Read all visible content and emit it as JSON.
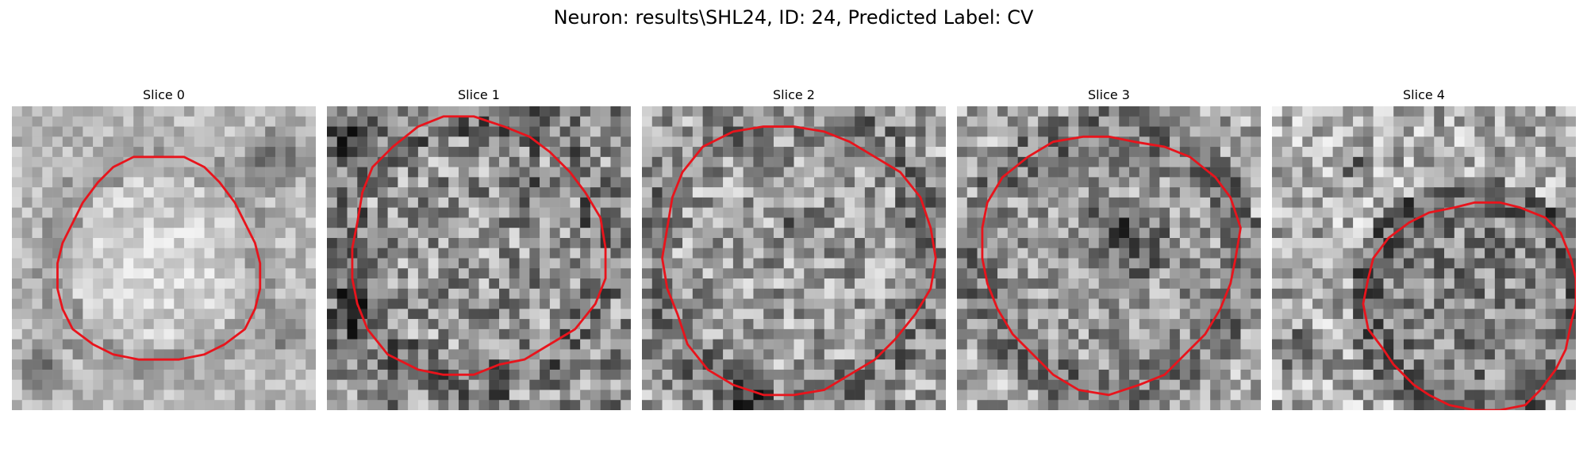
{
  "figure": {
    "title": "Neuron: results\\SHL24, ID: 24, Predicted Label: CV"
  },
  "panels": [
    {
      "title": "Slice 0"
    },
    {
      "title": "Slice 1"
    },
    {
      "title": "Slice 2"
    },
    {
      "title": "Slice 3"
    },
    {
      "title": "Slice 4"
    }
  ],
  "colors": {
    "contour": "#e8141c"
  }
}
